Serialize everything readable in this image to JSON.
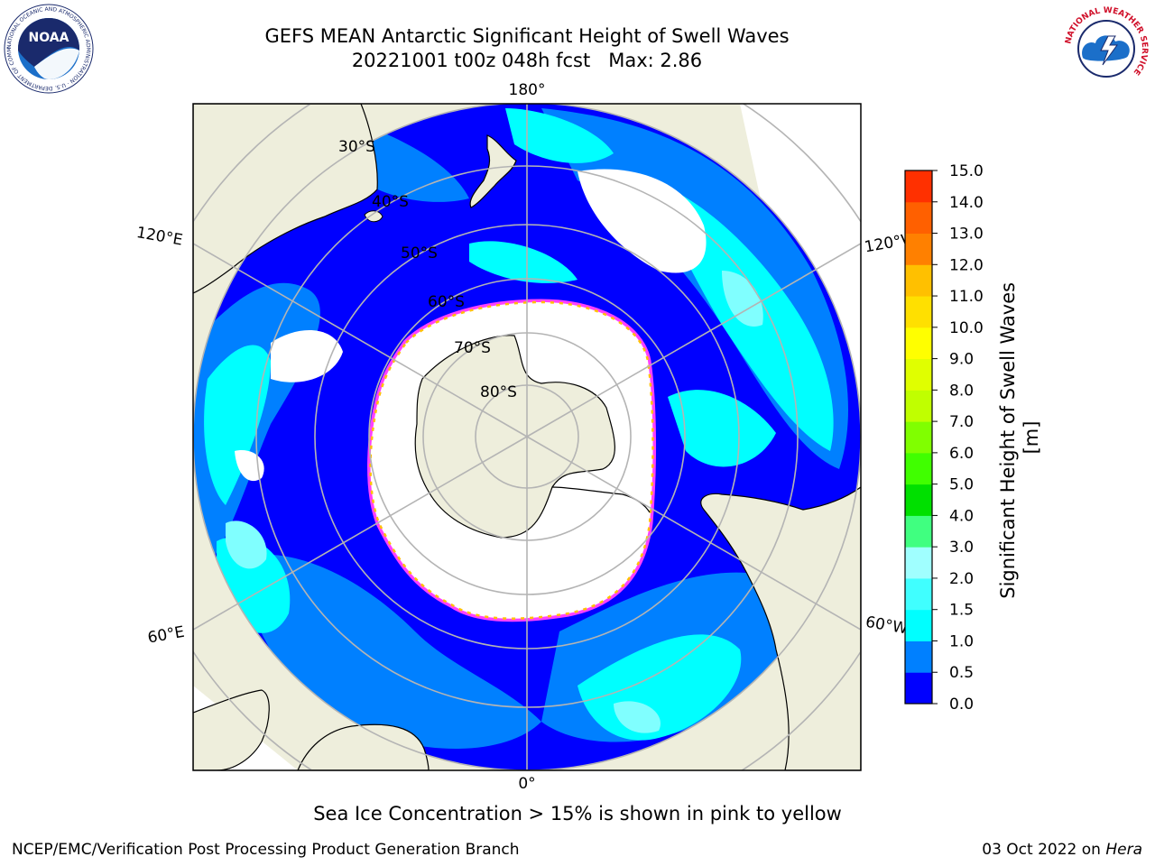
{
  "header": {
    "title_line1": "GEFS MEAN Antarctic Significant Height of Swell Waves",
    "title_line2": "20221001 t00z 048h fcst   Max: 2.86"
  },
  "logos": {
    "left_text": "NOAA",
    "left_ring_text": "NATIONAL OCEANIC AND ATMOSPHERIC ADMINISTRATION · U.S. DEPARTMENT OF COMMERCE",
    "right_ring_text": "NATIONAL WEATHER SERVICE"
  },
  "map": {
    "longitude_labels": {
      "top": "180°",
      "bottom": "0°",
      "upper_left": "120°E",
      "upper_right": "120°W",
      "lower_left": "60°E",
      "lower_right": "60°W"
    },
    "latitude_labels": [
      "30°S",
      "40°S",
      "50°S",
      "60°S",
      "70°S",
      "80°S"
    ],
    "colors": {
      "land": "#eeeedc",
      "ocean_low": "#0000ff",
      "ocean_mid": "#0080ff",
      "ocean_high": "#00ffff",
      "ocean_peak": "#80ffff",
      "ice_edge": "#ff40ff",
      "ice_inner": "#ffc000",
      "gridline": "#b4b4b4"
    }
  },
  "colorbar": {
    "label": "Significant Height of Swell Waves [m]",
    "ticks": [
      "0.0",
      "0.5",
      "1.0",
      "1.5",
      "2.0",
      "3.0",
      "4.0",
      "5.0",
      "6.0",
      "7.0",
      "8.0",
      "9.0",
      "10.0",
      "11.0",
      "12.0",
      "13.0",
      "14.0",
      "15.0"
    ],
    "colors": [
      "#0000ff",
      "#0080ff",
      "#00ffff",
      "#40ffff",
      "#a0ffff",
      "#40ff80",
      "#00e000",
      "#40ff00",
      "#80ff00",
      "#c0ff00",
      "#e0ff00",
      "#ffff00",
      "#ffe000",
      "#ffc000",
      "#ff8000",
      "#ff6000",
      "#ff3000"
    ]
  },
  "note": "Sea Ice Concentration > 15% is shown in pink to yellow",
  "footer": {
    "left": "NCEP/EMC/Verification Post Processing Product Generation Branch",
    "right_prefix": "03 Oct 2022 on ",
    "right_italic": "Hera"
  }
}
